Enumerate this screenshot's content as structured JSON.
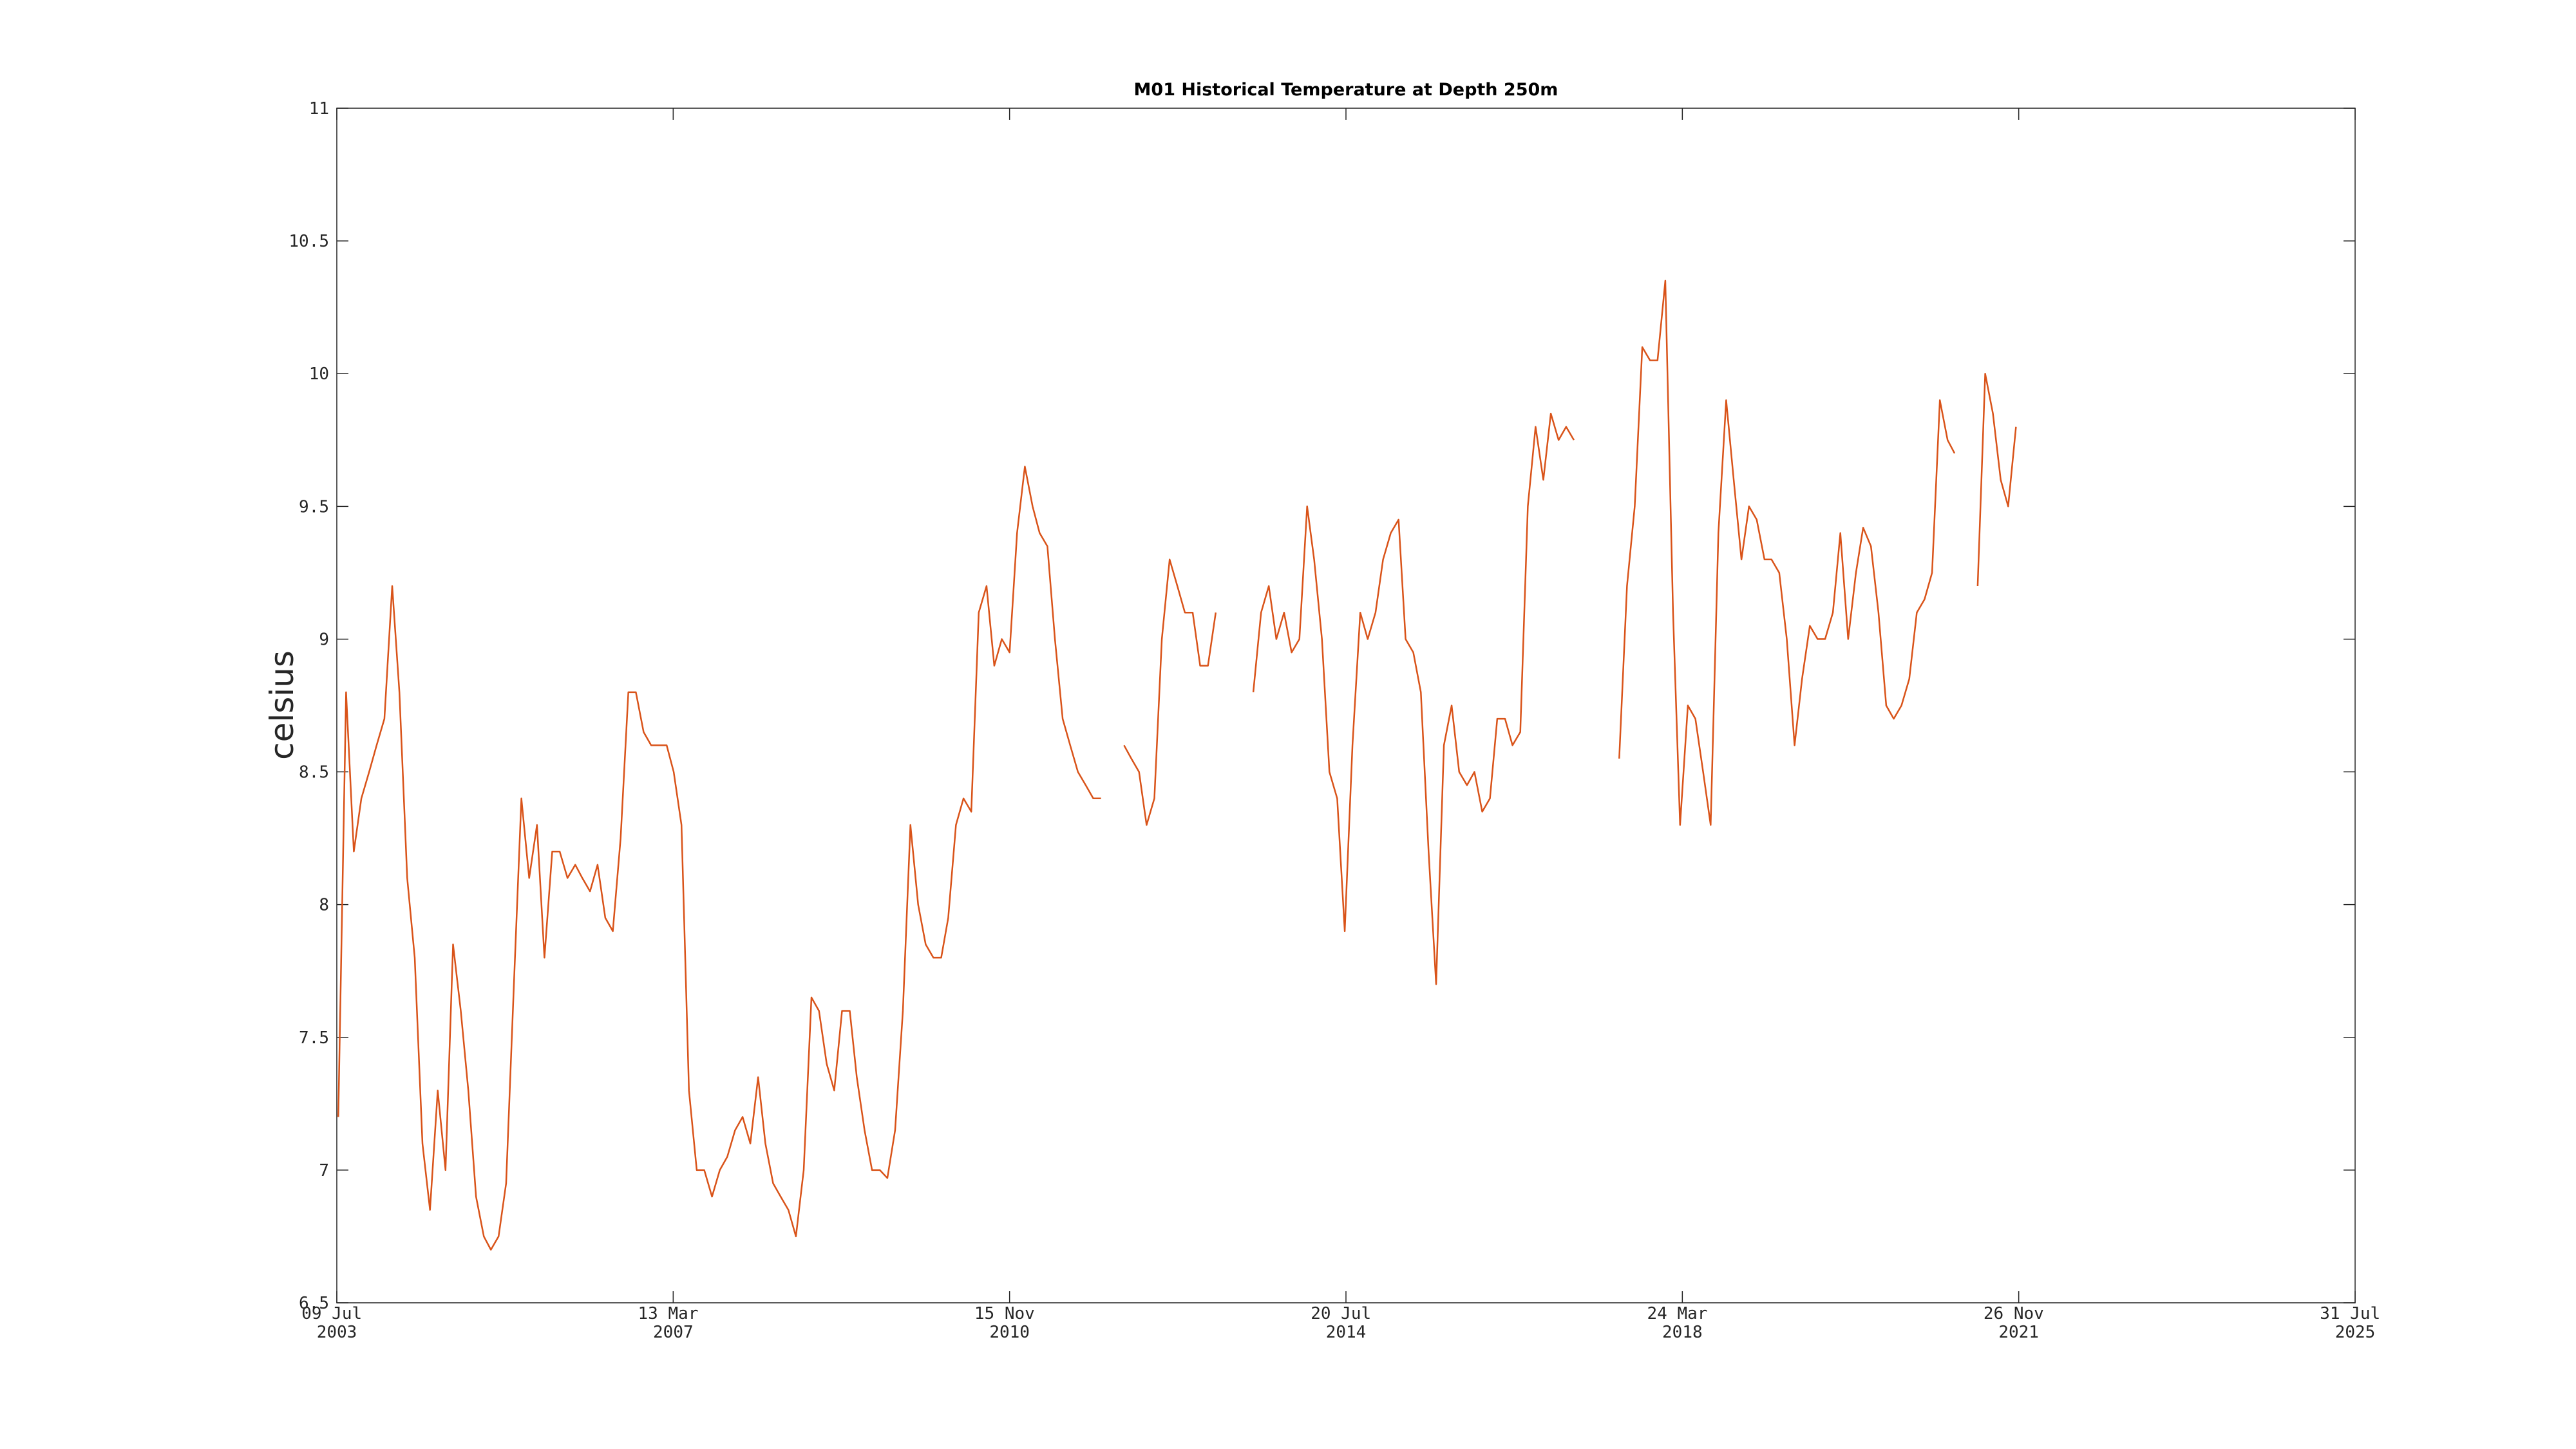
{
  "chart_data": {
    "type": "line",
    "title": "M01 Historical Temperature at Depth 250m",
    "y_label": "celsius",
    "color": "#d95319",
    "xlim": [
      "2003-07-09",
      "2025-07-31"
    ],
    "xticks": [
      {
        "value": "2003-07-09",
        "label": "09 Jul 2003"
      },
      {
        "value": "2007-03-13",
        "label": "13 Mar 2007"
      },
      {
        "value": "2010-11-15",
        "label": "15 Nov 2010"
      },
      {
        "value": "2014-07-20",
        "label": "20 Jul 2014"
      },
      {
        "value": "2018-03-24",
        "label": "24 Mar 2018"
      },
      {
        "value": "2021-11-26",
        "label": "26 Nov 2021"
      },
      {
        "value": "2025-07-31",
        "label": "31 Jul 2025"
      }
    ],
    "ylim": [
      6.5,
      11
    ],
    "yticks": [
      6.5,
      7,
      7.5,
      8,
      8.5,
      9,
      9.5,
      10,
      10.5,
      11
    ],
    "x": [
      "2003-07-15",
      "2003-08-15",
      "2003-09-15",
      "2003-10-15",
      "2003-11-15",
      "2003-12-15",
      "2004-01-15",
      "2004-02-15",
      "2004-03-15",
      "2004-04-15",
      "2004-05-15",
      "2004-06-15",
      "2004-07-15",
      "2004-08-15",
      "2004-09-15",
      "2004-10-15",
      "2004-11-15",
      "2004-12-15",
      "2005-01-15",
      "2005-02-15",
      "2005-03-15",
      "2005-04-15",
      "2005-05-15",
      "2005-06-15",
      "2005-07-15",
      "2005-08-15",
      "2005-09-15",
      "2005-10-15",
      "2005-11-15",
      "2005-12-15",
      "2006-01-15",
      "2006-02-15",
      "2006-03-15",
      "2006-04-15",
      "2006-05-15",
      "2006-06-15",
      "2006-07-15",
      "2006-08-15",
      "2006-09-15",
      "2006-10-15",
      "2006-11-15",
      "2006-12-15",
      "2007-01-15",
      "2007-02-15",
      "2007-03-15",
      "2007-04-15",
      "2007-05-15",
      "2007-06-15",
      "2007-07-15",
      "2007-08-15",
      "2007-09-15",
      "2007-10-15",
      "2007-11-15",
      "2007-12-15",
      "2008-01-15",
      "2008-02-15",
      "2008-03-15",
      "2008-04-15",
      "2008-05-15",
      "2008-06-15",
      "2008-07-15",
      "2008-08-15",
      "2008-09-15",
      "2008-10-15",
      "2008-11-15",
      "2008-12-15",
      "2009-01-15",
      "2009-02-15",
      "2009-03-15",
      "2009-04-15",
      "2009-05-15",
      "2009-06-15",
      "2009-07-15",
      "2009-08-15",
      "2009-09-15",
      "2009-10-15",
      "2009-11-15",
      "2009-12-15",
      "2010-01-15",
      "2010-02-15",
      "2010-03-15",
      "2010-04-15",
      "2010-05-15",
      "2010-06-15",
      "2010-07-15",
      "2010-08-15",
      "2010-09-15",
      "2010-10-15",
      "2010-11-15",
      "2010-12-15",
      "2011-01-15",
      "2011-02-15",
      "2011-03-15",
      "2011-04-15",
      "2011-05-15",
      "2011-06-15",
      "2011-07-15",
      "2011-08-15",
      "2011-09-15",
      "2011-10-15",
      "2011-11-15",
      "2011-12-15",
      "2012-01-15",
      "2012-02-15",
      "2012-03-15",
      "2012-04-15",
      "2012-05-15",
      "2012-06-15",
      "2012-07-15",
      "2012-08-15",
      "2012-09-15",
      "2012-10-15",
      "2012-11-15",
      "2012-12-15",
      "2013-01-15",
      "2013-02-15",
      "2013-03-15",
      "2013-04-15",
      "2013-05-15",
      "2013-06-15",
      "2013-07-15",
      "2013-08-15",
      "2013-09-15",
      "2013-10-15",
      "2013-11-15",
      "2013-12-15",
      "2014-01-15",
      "2014-02-15",
      "2014-03-15",
      "2014-04-15",
      "2014-05-15",
      "2014-06-15",
      "2014-07-15",
      "2014-08-15",
      "2014-09-15",
      "2014-10-15",
      "2014-11-15",
      "2014-12-15",
      "2015-01-15",
      "2015-02-15",
      "2015-03-15",
      "2015-04-15",
      "2015-05-15",
      "2015-06-15",
      "2015-07-15",
      "2015-08-15",
      "2015-09-15",
      "2015-10-15",
      "2015-11-15",
      "2015-12-15",
      "2016-01-15",
      "2016-02-15",
      "2016-03-15",
      "2016-04-15",
      "2016-05-15",
      "2016-06-15",
      "2016-07-15",
      "2016-08-15",
      "2016-09-15",
      "2016-10-15",
      "2016-11-15",
      "2016-12-15",
      "2017-01-15",
      "2017-02-15",
      "2017-03-15",
      "2017-04-15",
      "2017-05-15",
      "2017-06-15",
      "2017-07-15",
      "2017-08-15",
      "2017-09-15",
      "2017-10-15",
      "2017-11-15",
      "2017-12-15",
      "2018-01-15",
      "2018-02-15",
      "2018-03-15",
      "2018-04-15",
      "2018-05-15",
      "2018-06-15",
      "2018-07-15",
      "2018-08-15",
      "2018-09-15",
      "2018-10-15",
      "2018-11-15",
      "2018-12-15",
      "2019-01-15",
      "2019-02-15",
      "2019-03-15",
      "2019-04-15",
      "2019-05-15",
      "2019-06-15",
      "2019-07-15",
      "2019-08-15",
      "2019-09-15",
      "2019-10-15",
      "2019-11-15",
      "2019-12-15",
      "2020-01-15",
      "2020-02-15",
      "2020-03-15",
      "2020-04-15",
      "2020-05-15",
      "2020-06-15",
      "2020-07-15",
      "2020-08-15",
      "2020-09-15",
      "2020-10-15",
      "2020-11-15",
      "2020-12-15",
      "2021-01-15",
      "2021-02-15",
      "2021-03-15",
      "2021-04-15",
      "2021-05-15",
      "2021-06-15",
      "2021-07-15",
      "2021-08-15",
      "2021-09-15",
      "2021-10-15",
      "2021-11-15"
    ],
    "values": [
      7.2,
      8.8,
      8.2,
      8.4,
      8.5,
      8.6,
      8.7,
      9.2,
      8.8,
      8.1,
      7.8,
      7.1,
      6.85,
      7.3,
      7.0,
      7.85,
      7.6,
      7.3,
      6.9,
      6.75,
      6.7,
      6.75,
      6.95,
      7.7,
      8.4,
      8.1,
      8.3,
      7.8,
      8.2,
      8.2,
      8.1,
      8.15,
      8.1,
      8.05,
      8.15,
      7.95,
      7.9,
      8.25,
      8.8,
      8.8,
      8.65,
      8.6,
      8.6,
      8.6,
      8.5,
      8.3,
      7.3,
      7.0,
      7.0,
      6.9,
      7.0,
      7.05,
      7.15,
      7.2,
      7.1,
      7.35,
      7.1,
      6.95,
      6.9,
      6.85,
      6.75,
      7.0,
      7.65,
      7.6,
      7.4,
      7.3,
      7.6,
      7.6,
      7.35,
      7.15,
      7.0,
      7.0,
      6.97,
      7.15,
      7.6,
      8.3,
      8.0,
      7.85,
      7.8,
      7.8,
      7.95,
      8.3,
      8.4,
      8.35,
      9.1,
      9.2,
      8.9,
      9.0,
      8.95,
      9.4,
      9.65,
      9.5,
      9.4,
      9.35,
      9.0,
      8.7,
      8.6,
      8.5,
      8.45,
      8.4,
      8.4,
      null,
      null,
      8.6,
      8.55,
      8.5,
      8.3,
      8.4,
      9.0,
      9.3,
      9.2,
      9.1,
      9.1,
      8.9,
      8.9,
      9.1,
      null,
      null,
      null,
      null,
      8.8,
      9.1,
      9.2,
      9.0,
      9.1,
      8.95,
      9.0,
      9.5,
      9.3,
      9.0,
      8.5,
      8.4,
      7.9,
      8.6,
      9.1,
      9.0,
      9.1,
      9.3,
      9.4,
      9.45,
      9.0,
      8.95,
      8.8,
      8.2,
      7.7,
      8.6,
      8.75,
      8.5,
      8.45,
      8.5,
      8.35,
      8.4,
      8.7,
      8.7,
      8.6,
      8.65,
      9.5,
      9.8,
      9.6,
      9.85,
      9.75,
      9.8,
      9.75,
      null,
      null,
      null,
      null,
      null,
      8.55,
      9.2,
      9.5,
      10.1,
      10.05,
      10.05,
      10.35,
      9.1,
      8.3,
      8.75,
      8.7,
      8.5,
      8.3,
      9.4,
      9.9,
      9.6,
      9.3,
      9.5,
      9.45,
      9.3,
      9.3,
      9.25,
      9.0,
      8.6,
      8.85,
      9.05,
      9.0,
      9.0,
      9.1,
      9.4,
      9.0,
      9.25,
      9.42,
      9.35,
      9.1,
      8.75,
      8.7,
      8.75,
      8.85,
      9.1,
      9.15,
      9.25,
      9.9,
      9.75,
      9.7,
      null,
      null,
      9.2,
      10.0,
      9.85,
      9.6,
      9.5,
      9.8
    ]
  }
}
